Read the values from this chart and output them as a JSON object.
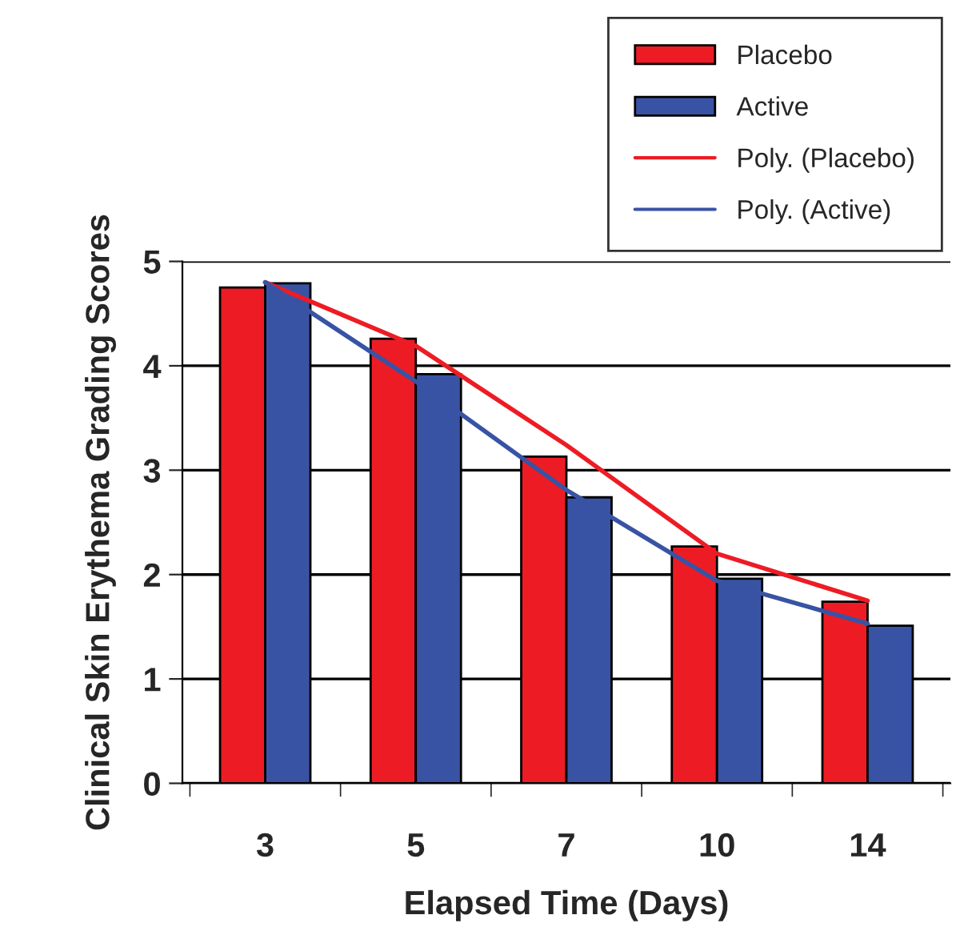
{
  "chart_data": {
    "type": "bar",
    "xlabel": "Elapsed Time (Days)",
    "ylabel": "Clinical Skin Erythema Grading Scores",
    "categories": [
      "3",
      "5",
      "7",
      "10",
      "14"
    ],
    "series": [
      {
        "name": "Placebo",
        "color": "#ed1c24",
        "values": [
          4.75,
          4.26,
          3.13,
          2.27,
          1.74
        ]
      },
      {
        "name": "Active",
        "color": "#3953a4",
        "values": [
          4.79,
          3.92,
          2.74,
          1.96,
          1.51
        ]
      },
      {
        "name": "Poly. (Placebo)",
        "type": "line",
        "color": "#ed1c24",
        "x": [
          "3",
          "5",
          "7",
          "10",
          "14"
        ],
        "values": [
          4.8,
          4.19,
          3.24,
          2.2,
          1.75
        ]
      },
      {
        "name": "Poly. (Active)",
        "type": "line",
        "color": "#3953a4",
        "x": [
          "3",
          "5",
          "7",
          "10",
          "14"
        ],
        "values": [
          4.8,
          3.85,
          2.81,
          1.94,
          1.53
        ]
      }
    ],
    "ylim": [
      0,
      5
    ],
    "yticks": [
      0,
      1,
      2,
      3,
      4,
      5
    ],
    "grid": "y",
    "legend": "top right",
    "marker": "none",
    "line_style": "solid"
  }
}
